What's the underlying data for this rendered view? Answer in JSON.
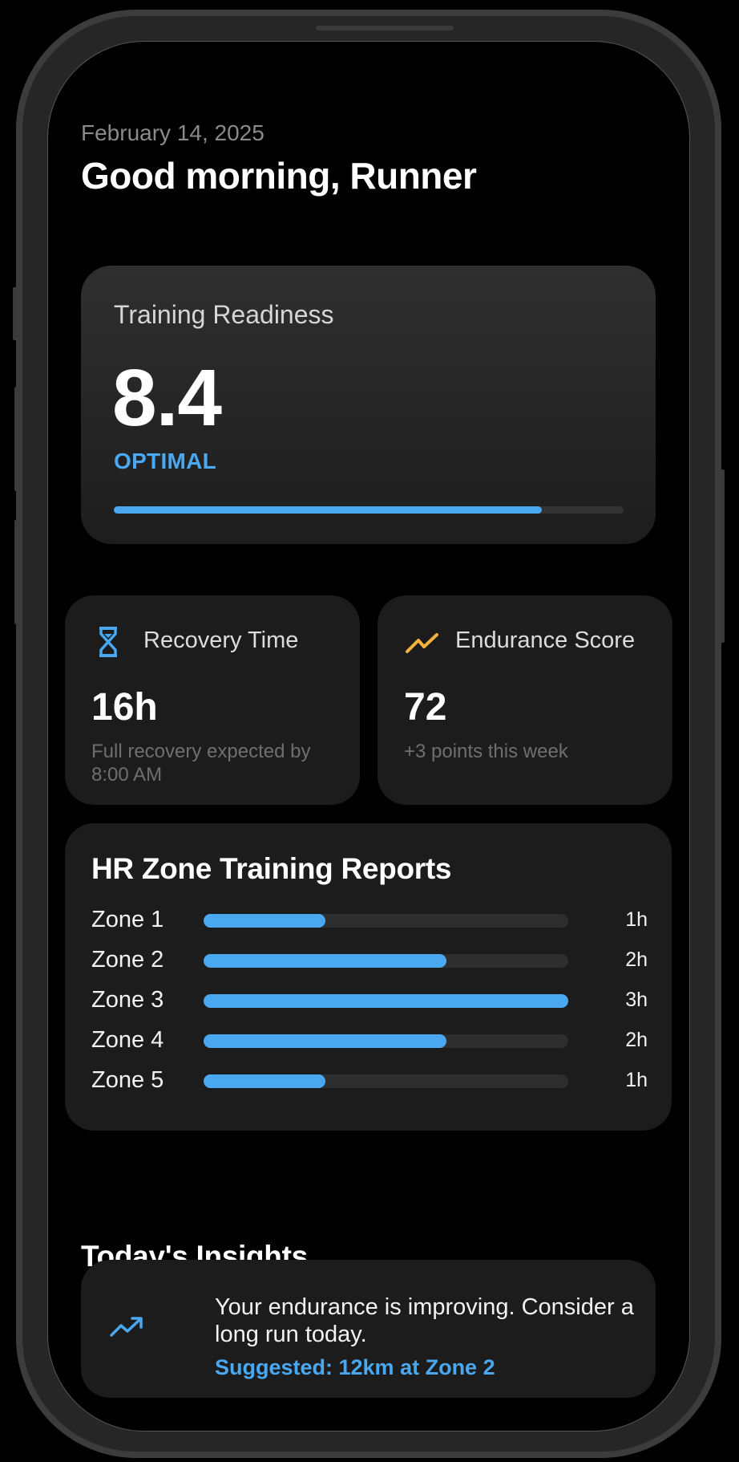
{
  "header": {
    "date": "February 14, 2025",
    "greeting": "Good morning, Runner"
  },
  "readiness": {
    "label": "Training Readiness",
    "score": "8.4",
    "status": "OPTIMAL",
    "progress_percent": 84,
    "accent_color": "#4aa8f0"
  },
  "recovery": {
    "icon": "hourglass-icon",
    "title": "Recovery Time",
    "value": "16h",
    "subtitle": "Full recovery expected by 8:00 AM",
    "icon_color": "#4aa8f0"
  },
  "endurance": {
    "icon": "trend-line-icon",
    "title": "Endurance Score",
    "value": "72",
    "subtitle": "+3 points this week",
    "icon_color": "#f2b33d"
  },
  "hr_zones": {
    "title": "HR Zone Training Reports",
    "zones": [
      {
        "label": "Zone 1",
        "value": "1h",
        "percent": 33.3
      },
      {
        "label": "Zone 2",
        "value": "2h",
        "percent": 66.7
      },
      {
        "label": "Zone 3",
        "value": "3h",
        "percent": 100
      },
      {
        "label": "Zone 4",
        "value": "2h",
        "percent": 66.7
      },
      {
        "label": "Zone 5",
        "value": "1h",
        "percent": 33.3
      }
    ]
  },
  "insights": {
    "title": "Today's Insights",
    "items": [
      {
        "icon": "trending-up-icon",
        "message": "Your endurance is improving. Consider a long run today.",
        "suggestion": "Suggested: 12km at Zone 2"
      }
    ]
  },
  "chart_data": {
    "type": "bar",
    "title": "HR Zone Training Reports",
    "orientation": "horizontal",
    "categories": [
      "Zone 1",
      "Zone 2",
      "Zone 3",
      "Zone 4",
      "Zone 5"
    ],
    "values": [
      1,
      2,
      3,
      2,
      1
    ],
    "unit": "h",
    "xlim": [
      0,
      3
    ],
    "grid": false,
    "legend": null
  }
}
